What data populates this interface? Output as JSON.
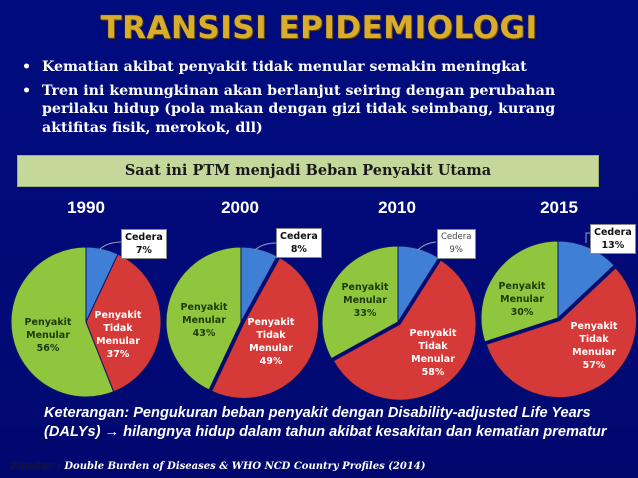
{
  "title": "TRANSISI EPIDEMIOLOGI",
  "bullets": [
    {
      "marker": "•",
      "text": "Kematian akibat penyakit tidak menular semakin meningkat"
    },
    {
      "marker": "•",
      "text": "Tren ini kemungkinan akan berlanjut seiring dengan perubahan perilaku hidup (pola makan  dengan gizi tidak seimbang, kurang aktifitas fisik, merokok, dll)"
    }
  ],
  "banner": "Saat ini PTM menjadi Beban Penyakit Utama",
  "colors": {
    "background": "#000a78",
    "title": "#d9ad2c",
    "banner_bg": "#c5d89b",
    "cedera": "#3f7fd6",
    "ptm": "#d63a38",
    "pm": "#8fc63e"
  },
  "note": "Keterangan: Pengukuran beban penyakit dengan Disability-adjusted Life Years (DALYs) → hilangnya hidup dalam tahun akibat kesakitan dan kematian prematur",
  "source": {
    "label": "Sumber :",
    "text": "Double Burden of Diseases & WHO NCD Country Profiles (2014)"
  },
  "chart_data": [
    {
      "type": "pie",
      "title": "1990",
      "categories": [
        "Cedera",
        "Penyakit Tidak Menular",
        "Penyakit Menular"
      ],
      "values": [
        7,
        37,
        56
      ],
      "labels": {
        "cedera": "Cedera 7%",
        "ptm": "Penyakit Tidak Menular 37%",
        "pm": "Penyakit Menular 56%"
      }
    },
    {
      "type": "pie",
      "title": "2000",
      "categories": [
        "Cedera",
        "Penyakit Tidak Menular",
        "Penyakit Menular"
      ],
      "values": [
        8,
        49,
        43
      ],
      "labels": {
        "cedera": "Cedera 8%",
        "ptm": "Penyakit Tidak Menular 49%",
        "pm": "Penyakit Menular 43%"
      }
    },
    {
      "type": "pie",
      "title": "2010",
      "categories": [
        "Cedera",
        "Penyakit Tidak Menular",
        "Penyakit Menular"
      ],
      "values": [
        9,
        58,
        33
      ],
      "labels": {
        "cedera": "Cedera 9%",
        "ptm": "Penyakit Tidak Menular 58%",
        "pm": "Penyakit Menular 33%"
      }
    },
    {
      "type": "pie",
      "title": "2015",
      "categories": [
        "Cedera",
        "Penyakit Tidak Menular",
        "Penyakit Menular"
      ],
      "values": [
        13,
        57,
        30
      ],
      "labels": {
        "cedera": "Cedera 13%",
        "ptm": "Penyakit Tidak Menular 57%",
        "pm": "Penyakit Menular 30%"
      }
    }
  ],
  "pie_text": {
    "p1990": {
      "cedera": [
        "Cedera",
        "7%"
      ],
      "ptm": [
        "Penyakit",
        "Tidak",
        "Menular",
        "37%"
      ],
      "pm": [
        "Penyakit",
        "Menular",
        "56%"
      ]
    },
    "p2000": {
      "cedera": [
        "Cedera",
        "8%"
      ],
      "ptm": [
        "Penyakit",
        "Tidak",
        "Menular",
        "49%"
      ],
      "pm": [
        "Penyakit",
        "Menular",
        "43%"
      ]
    },
    "p2010": {
      "cedera": [
        "Cedera",
        "9%"
      ],
      "ptm": [
        "Penyakit",
        "Tidak",
        "Menular",
        "58%"
      ],
      "pm": [
        "Penyakit",
        "Menular",
        "33%"
      ]
    },
    "p2015": {
      "cedera": [
        "Cedera",
        "13%"
      ],
      "ptm": [
        "Penyakit",
        "Tidak",
        "Menular",
        "57%"
      ],
      "pm": [
        "Penyakit",
        "Menular",
        "30%"
      ]
    }
  }
}
